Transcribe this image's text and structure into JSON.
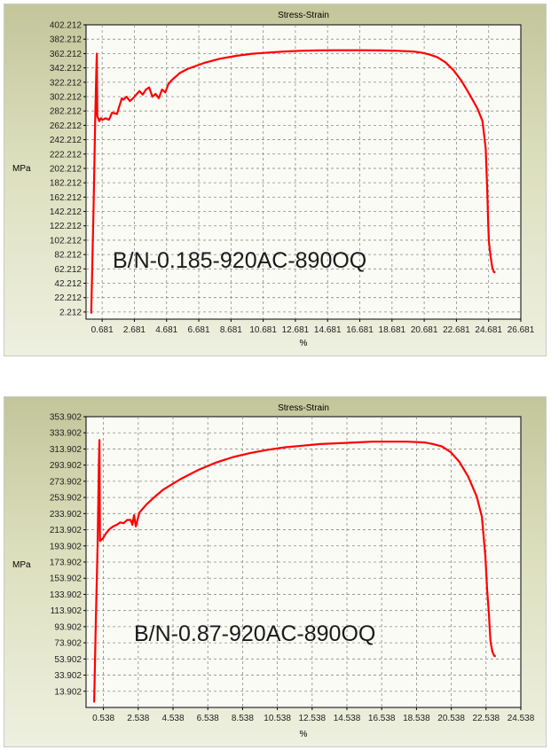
{
  "chart_data": [
    {
      "type": "line",
      "title": "Stress-Strain",
      "xlabel": "%",
      "ylabel": "MPa",
      "annotation": "B/N-0.185-920AC-890OQ",
      "xlim": [
        -0.319,
        26.681
      ],
      "ylim": [
        -7.788,
        402.212
      ],
      "x_ticks": [
        "0.681",
        "2.681",
        "4.681",
        "6.681",
        "8.681",
        "10.681",
        "12.681",
        "14.681",
        "16.681",
        "18.681",
        "20.681",
        "22.681",
        "24.681",
        "26.681"
      ],
      "y_ticks": [
        "2.212",
        "22.212",
        "42.212",
        "62.212",
        "82.212",
        "102.212",
        "122.212",
        "142.212",
        "162.212",
        "182.212",
        "202.212",
        "222.212",
        "242.212",
        "262.212",
        "282.212",
        "302.212",
        "322.212",
        "342.212",
        "362.212",
        "382.212",
        "402.212"
      ],
      "grid": true,
      "line_color": "#ff0000",
      "series": [
        {
          "x": [
            0.0,
            0.15,
            0.25,
            0.32,
            0.35,
            0.38,
            0.5,
            0.6,
            0.7,
            0.9,
            1.1,
            1.3,
            1.6,
            1.9,
            2.0,
            2.2,
            2.4,
            2.6,
            2.8,
            3.0,
            3.2,
            3.4,
            3.6,
            3.8,
            4.0,
            4.2,
            4.4,
            4.6,
            4.8,
            5.0,
            5.5,
            6.0,
            7.0,
            8.0,
            9.0,
            10.0,
            11.0,
            12.0,
            13.0,
            14.0,
            15.0,
            16.0,
            17.0,
            18.0,
            19.0,
            20.0,
            20.5,
            21.0,
            21.5,
            22.0,
            22.5,
            23.0,
            23.5,
            24.0,
            24.3,
            24.5,
            24.6,
            24.65,
            24.7,
            24.8,
            24.9,
            25.0,
            25.1
          ],
          "y": [
            0,
            150,
            270,
            340,
            362,
            275,
            268,
            272,
            270,
            272,
            270,
            280,
            278,
            300,
            298,
            302,
            296,
            300,
            305,
            310,
            305,
            312,
            315,
            302,
            306,
            300,
            312,
            308,
            320,
            325,
            335,
            341,
            349,
            355,
            359,
            362,
            363.5,
            365,
            366,
            366.5,
            366.8,
            366.8,
            366.8,
            366.5,
            366,
            365,
            363.5,
            361,
            357,
            350,
            339,
            324,
            305,
            285,
            268,
            230,
            170,
            130,
            100,
            80,
            65,
            58,
            57
          ]
        }
      ]
    },
    {
      "type": "line",
      "title": "Stress-Strain",
      "xlabel": "%",
      "ylabel": "MPa",
      "annotation": "B/N-0.87-920AC-890OQ",
      "xlim": [
        -0.462,
        24.538
      ],
      "ylim": [
        -6.098,
        353.902
      ],
      "x_ticks": [
        "0.538",
        "2.538",
        "4.538",
        "6.538",
        "8.538",
        "10.538",
        "12.538",
        "14.538",
        "16.538",
        "18.538",
        "20.538",
        "22.538",
        "24.538"
      ],
      "y_ticks": [
        "13.902",
        "33.902",
        "53.902",
        "73.902",
        "93.902",
        "113.902",
        "133.902",
        "153.902",
        "173.902",
        "193.902",
        "213.902",
        "233.902",
        "253.902",
        "273.902",
        "293.902",
        "313.902",
        "333.902",
        "353.902"
      ],
      "grid": true,
      "line_color": "#ff0000",
      "series": [
        {
          "x": [
            0.0,
            0.1,
            0.2,
            0.28,
            0.31,
            0.34,
            0.5,
            0.7,
            0.9,
            1.1,
            1.3,
            1.5,
            1.7,
            1.9,
            2.1,
            2.2,
            2.3,
            2.4,
            2.6,
            3.0,
            3.5,
            4.0,
            5.0,
            6.0,
            7.0,
            8.0,
            9.0,
            10.0,
            11.0,
            12.0,
            13.0,
            14.0,
            15.0,
            16.0,
            17.0,
            18.0,
            19.0,
            19.5,
            20.0,
            20.5,
            21.0,
            21.5,
            22.0,
            22.3,
            22.5,
            22.6,
            22.7,
            22.75,
            22.8,
            22.9,
            23.0,
            23.1
          ],
          "y": [
            0,
            100,
            195,
            300,
            325,
            200,
            203,
            210,
            215,
            218,
            220,
            223,
            222,
            226,
            226,
            220,
            232,
            218,
            235,
            245,
            255,
            264,
            277,
            288,
            297,
            304,
            309,
            313,
            316,
            318,
            320,
            321,
            322,
            323,
            323,
            323,
            322,
            320,
            317,
            310,
            298,
            280,
            255,
            230,
            180,
            140,
            110,
            90,
            75,
            63,
            58,
            57
          ]
        }
      ]
    }
  ]
}
